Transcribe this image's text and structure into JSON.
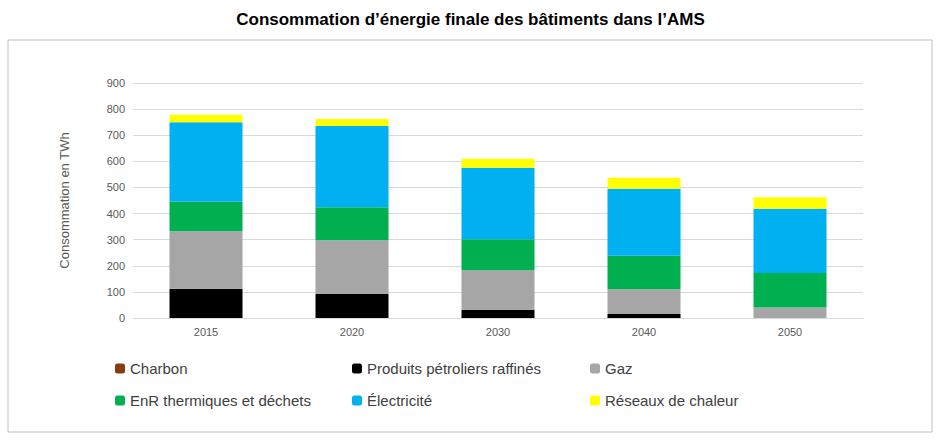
{
  "chart_data": {
    "type": "bar",
    "title": "Consommation d’énergie finale des bâtiments dans l’AMS",
    "y_label": "Consommation en TWh",
    "categories": [
      "2015",
      "2020",
      "2030",
      "2040",
      "2050"
    ],
    "series": [
      {
        "name": "Charbon",
        "color": "#843c0c",
        "values": [
          0,
          0,
          0,
          0,
          0
        ]
      },
      {
        "name": "Produits pétroliers raffinés",
        "color": "#000000",
        "values": [
          112,
          92,
          32,
          15,
          0
        ]
      },
      {
        "name": "Gaz",
        "color": "#a6a6a6",
        "values": [
          220,
          206,
          151,
          95,
          40
        ]
      },
      {
        "name": "EnR thermiques et déchets",
        "color": "#00b050",
        "values": [
          113,
          126,
          119,
          128,
          132
        ]
      },
      {
        "name": "Électricité",
        "color": "#00b0f0",
        "values": [
          305,
          311,
          273,
          257,
          246
        ]
      },
      {
        "name": "Réseaux de chaleur",
        "color": "#ffff00",
        "values": [
          28,
          27,
          35,
          42,
          44
        ]
      }
    ],
    "ylim": [
      0,
      900
    ],
    "yticks": [
      0,
      100,
      200,
      300,
      400,
      500,
      600,
      700,
      800,
      900
    ],
    "stacked": true,
    "grid": true,
    "legend": "bottom"
  }
}
